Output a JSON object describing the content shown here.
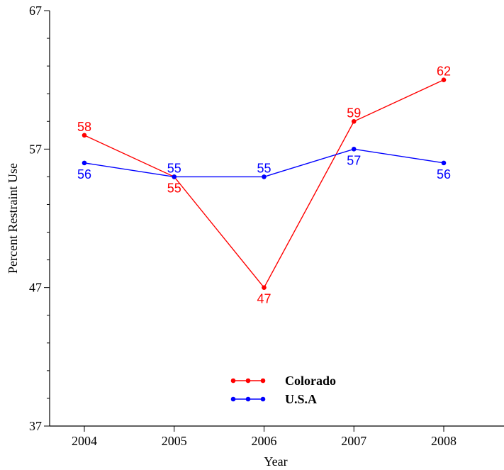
{
  "chart_data": {
    "type": "line",
    "title": "",
    "xlabel": "Year",
    "ylabel": "Percent Restraint Use",
    "categories": [
      "2004",
      "2005",
      "2006",
      "2007",
      "2008"
    ],
    "ylim": [
      37,
      67
    ],
    "yticks": [
      "37",
      "47",
      "57",
      "67"
    ],
    "grid": false,
    "legend_position": "bottom-center",
    "series": [
      {
        "name": "Colorado",
        "color": "#ff0000",
        "values": [
          58,
          55,
          47,
          59,
          62
        ],
        "labels": [
          "58",
          "55",
          "47",
          "59",
          "62"
        ],
        "label_side": [
          "above",
          "below",
          "below",
          "above",
          "above"
        ]
      },
      {
        "name": "U.S.A",
        "color": "#0000ff",
        "values": [
          56,
          55,
          55,
          57,
          56
        ],
        "labels": [
          "56",
          "55",
          "55",
          "57",
          "56"
        ],
        "label_side": [
          "below",
          "above",
          "above",
          "below",
          "below"
        ]
      }
    ]
  }
}
